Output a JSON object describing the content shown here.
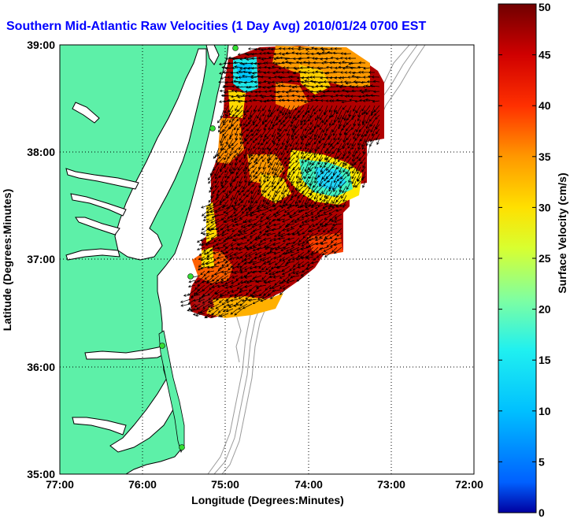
{
  "title": "Southern Mid-Atlantic Raw Velocities (1 Day Avg) 2010/01/24 0700 EST",
  "title_color": "#0000ff",
  "x_axis": {
    "label": "Longitude (Degrees:Minutes)",
    "ticks": [
      "77:00",
      "76:00",
      "75:00",
      "74:00",
      "73:00",
      "72:00"
    ]
  },
  "y_axis": {
    "label": "Latitude (Degrees:Minutes)",
    "ticks": [
      "39:00",
      "38:00",
      "37:00",
      "36:00",
      "35:00"
    ]
  },
  "colorbar": {
    "label": "Surface Velocity (cm/s)",
    "ticks": [
      "50",
      "45",
      "40",
      "35",
      "30",
      "25",
      "20",
      "15",
      "10",
      "5",
      "0"
    ],
    "min": 0,
    "max": 50,
    "colormap": "jet"
  },
  "colors": {
    "land": "#5df0a8",
    "coastline": "#000000",
    "bathymetry": "#9a9a9a",
    "grid": "#000000",
    "station": "#33dd33",
    "arrow": "#000000"
  },
  "stations": [
    "station-1",
    "station-2",
    "station-3",
    "station-4",
    "station-5"
  ],
  "gridlines": "dotted"
}
